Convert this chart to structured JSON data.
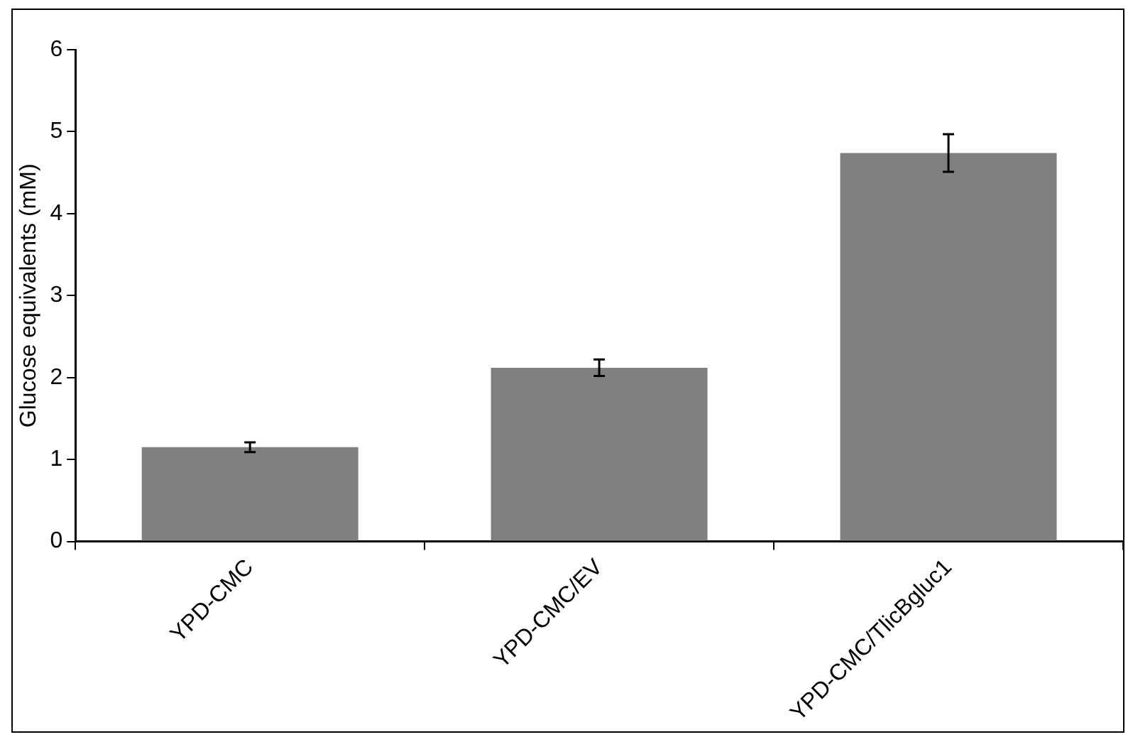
{
  "chart_data": {
    "type": "bar",
    "ylabel": "Glucose equivalents (mM)",
    "categories": [
      "YPD-CMC",
      "YPD-CMC/EV",
      "YPD-CMC/TlicBgluc1"
    ],
    "values": [
      1.15,
      2.12,
      4.74
    ],
    "errors": [
      0.06,
      0.1,
      0.23
    ],
    "color": "#808080",
    "ylim": [
      0,
      6
    ],
    "yticks": [
      0,
      1,
      2,
      3,
      4,
      5,
      6
    ],
    "grid": false,
    "legend": false
  }
}
